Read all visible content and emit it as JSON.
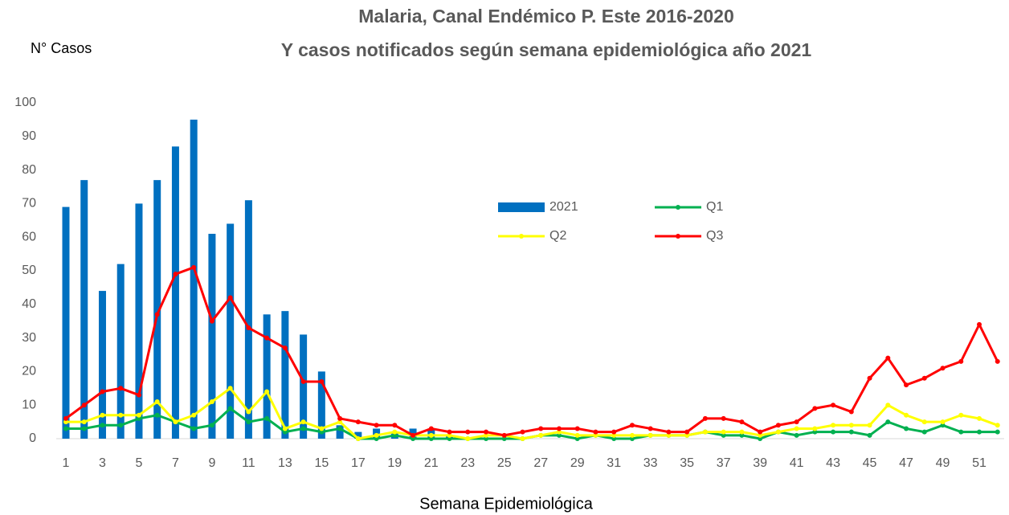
{
  "chart_data": {
    "type": "combo",
    "title": "Malaria, Canal Endémico P. Este 2016-2020",
    "subtitle": "Y casos notificados según semana epidemiológica año 2021",
    "y_label": "N° Casos",
    "x_label": "Semana Epidemiológica",
    "categories": [
      1,
      null,
      3,
      null,
      5,
      null,
      7,
      null,
      9,
      null,
      11,
      null,
      13,
      null,
      15,
      null,
      17,
      null,
      19,
      null,
      21,
      null,
      23,
      null,
      25,
      null,
      27,
      null,
      29,
      null,
      31,
      null,
      33,
      null,
      35,
      null,
      37,
      null,
      39,
      null,
      41,
      null,
      43,
      null,
      45,
      null,
      47,
      null,
      49,
      null,
      51,
      null
    ],
    "ylim": [
      0,
      100
    ],
    "yticks": [
      0,
      10,
      20,
      30,
      40,
      50,
      60,
      70,
      80,
      90,
      100
    ],
    "grid": false,
    "legend": "center",
    "series": [
      {
        "name": "2021",
        "type": "bar",
        "color": "#0070c0",
        "values": [
          69,
          77,
          44,
          52,
          70,
          77,
          87,
          95,
          61,
          64,
          71,
          37,
          38,
          31,
          20,
          4,
          2,
          3,
          2,
          3,
          3,
          1,
          0,
          0,
          0,
          0,
          0,
          0,
          0,
          0,
          0,
          0,
          0,
          0,
          0,
          0,
          0,
          0,
          0,
          0,
          0,
          0,
          0,
          0,
          0,
          0,
          0,
          0,
          0,
          0,
          0,
          0
        ]
      },
      {
        "name": "Q1",
        "type": "line",
        "color": "#00b050",
        "values": [
          3,
          3,
          4,
          4,
          6,
          7,
          5,
          3,
          4,
          9,
          5,
          6,
          2,
          3,
          2,
          3,
          0,
          0,
          1,
          0,
          0,
          0,
          0,
          0,
          0,
          0,
          1,
          1,
          0,
          1,
          0,
          0,
          1,
          1,
          1,
          2,
          1,
          1,
          0,
          2,
          1,
          2,
          2,
          2,
          1,
          5,
          3,
          2,
          4,
          2,
          2,
          2
        ]
      },
      {
        "name": "Q2",
        "type": "line",
        "color": "#ffff00",
        "values": [
          5,
          5,
          7,
          7,
          7,
          11,
          5,
          7,
          11,
          15,
          8,
          14,
          3,
          5,
          3,
          5,
          0,
          1,
          2,
          1,
          1,
          1,
          0,
          1,
          1,
          0,
          1,
          2,
          1,
          1,
          1,
          1,
          1,
          1,
          1,
          2,
          2,
          2,
          1,
          2,
          3,
          3,
          4,
          4,
          4,
          10,
          7,
          5,
          5,
          7,
          6,
          4
        ]
      },
      {
        "name": "Q3",
        "type": "line",
        "color": "#ff0000",
        "values": [
          6,
          10,
          14,
          15,
          13,
          37,
          49,
          51,
          35,
          42,
          33,
          30,
          27,
          17,
          17,
          6,
          5,
          4,
          4,
          1,
          3,
          2,
          2,
          2,
          1,
          2,
          3,
          3,
          3,
          2,
          2,
          4,
          3,
          2,
          2,
          6,
          6,
          5,
          2,
          4,
          5,
          9,
          10,
          8,
          18,
          24,
          16,
          18,
          21,
          23,
          34,
          23
        ]
      }
    ]
  }
}
